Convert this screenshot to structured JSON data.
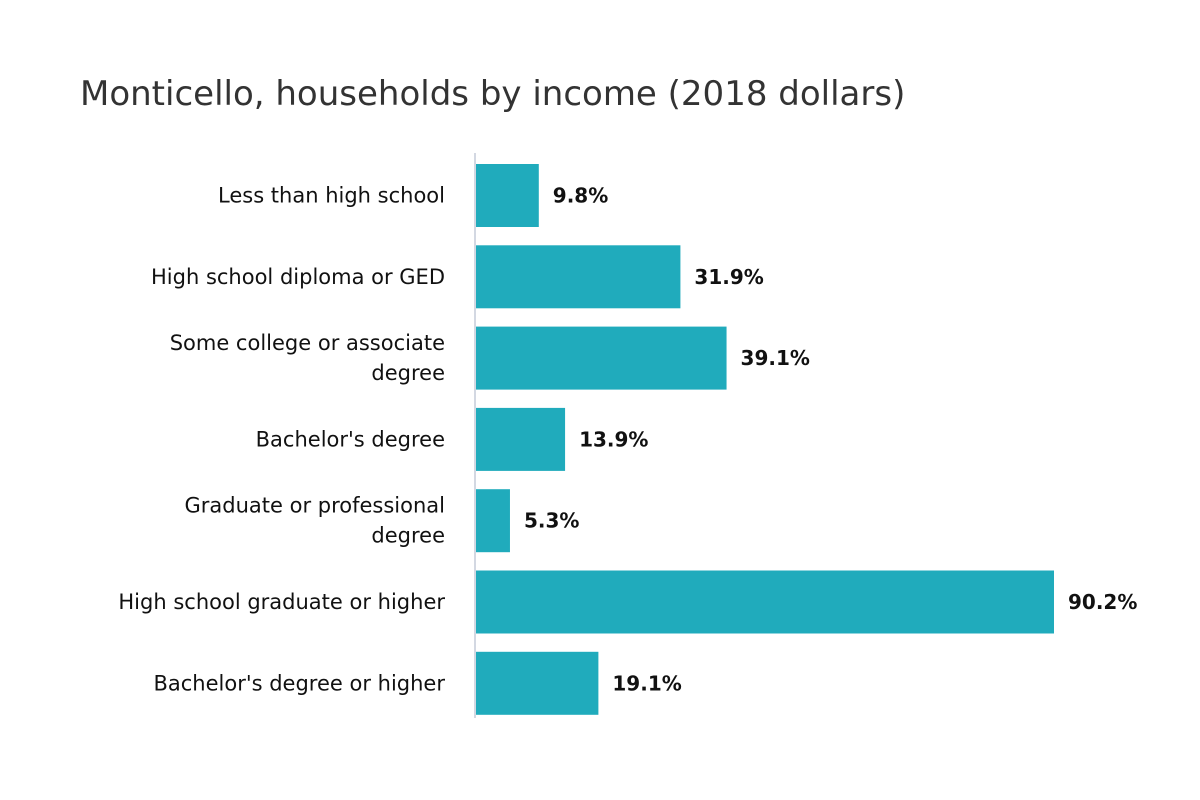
{
  "chart_data": {
    "type": "bar",
    "orientation": "horizontal",
    "title": "Monticello, households by income (2018 dollars)",
    "categories": [
      [
        "Less than high school"
      ],
      [
        "High school diploma or GED"
      ],
      [
        "Some college or associate",
        "degree"
      ],
      [
        "Bachelor's degree"
      ],
      [
        "Graduate or professional",
        "degree"
      ],
      [
        "High school graduate or higher"
      ],
      [
        "Bachelor's degree or higher"
      ]
    ],
    "values": [
      9.8,
      31.9,
      39.1,
      13.9,
      5.3,
      90.2,
      19.1
    ],
    "value_labels": [
      "9.8%",
      "31.9%",
      "39.1%",
      "13.9%",
      "5.3%",
      "90.2%",
      "19.1%"
    ],
    "xlim": [
      0,
      100
    ],
    "xlabel": "",
    "ylabel": "",
    "grid": false,
    "bar_color": "#20abbc"
  }
}
